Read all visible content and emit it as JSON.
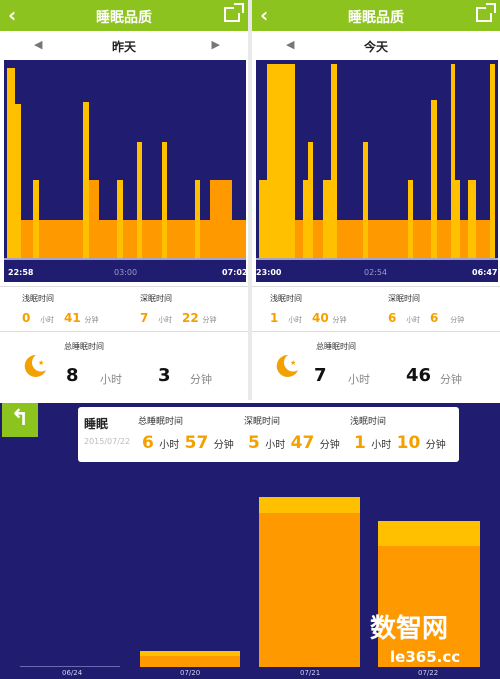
{
  "colors": {
    "accent": "#8cc31e",
    "chart_bg": "#201c70",
    "light_sleep": "#ff9900",
    "deep_sleep": "#ffc000",
    "value": "#f3a100"
  },
  "panels": [
    {
      "title": "睡眠品质",
      "date": "昨天",
      "ticks": {
        "start": "22:58",
        "mid": "03:00",
        "end": "07:02"
      },
      "light_label": "浅眠时间",
      "deep_label": "深眠时间",
      "light_h": "0",
      "light_m": "41",
      "deep_h": "7",
      "deep_m": "22",
      "total_label": "总睡眠时间",
      "total_h": "8",
      "total_m": "3"
    },
    {
      "title": "睡眠品质",
      "date": "今天",
      "ticks": {
        "start": "23:00",
        "mid": "02:54",
        "end": "06:47"
      },
      "light_label": "浅眠时间",
      "deep_label": "深眠时间",
      "light_h": "1",
      "light_m": "40",
      "deep_h": "6",
      "deep_m": "6",
      "total_label": "总睡眠时间",
      "total_h": "7",
      "total_m": "46"
    }
  ],
  "units": {
    "hour": "小时",
    "minute": "分钟"
  },
  "summary": {
    "title": "睡眠",
    "date": "2015/07/22",
    "total_label": "总睡眠时间",
    "deep_label": "深眠时间",
    "light_label": "浅眠时间",
    "total_h": "6",
    "total_m": "57",
    "deep_h": "5",
    "deep_m": "47",
    "light_h": "1",
    "light_m": "10"
  },
  "weekly_labels": [
    "06/24",
    "07/20",
    "07/21",
    "07/22"
  ],
  "watermark": {
    "text": "数智网",
    "url": "le365.cc"
  }
}
